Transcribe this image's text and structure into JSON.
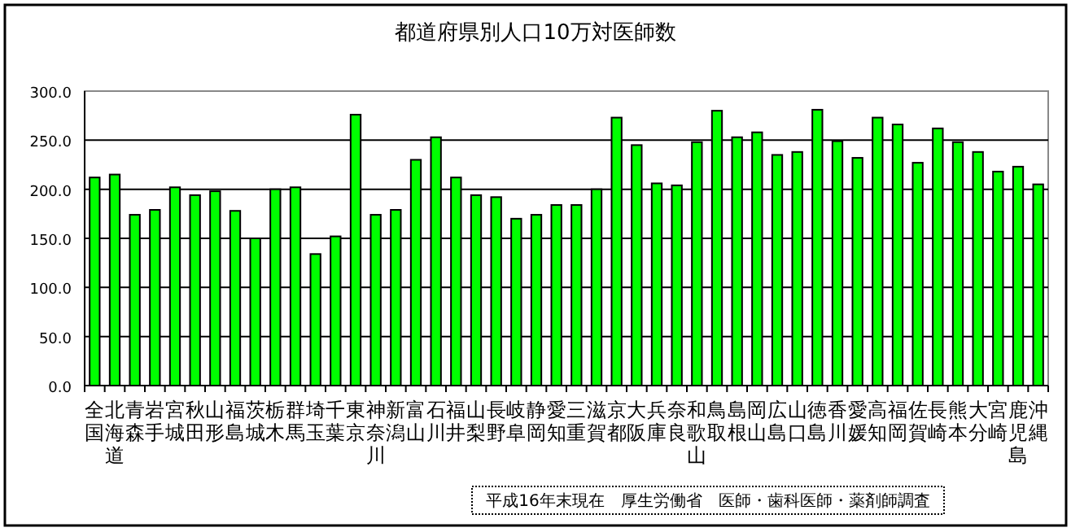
{
  "chart_data": {
    "type": "bar",
    "title": "都道府県別人口10万対医師数",
    "categories": [
      "全国",
      "北海道",
      "青森",
      "岩手",
      "宮城",
      "秋田",
      "山形",
      "福島",
      "茨城",
      "栃木",
      "群馬",
      "埼玉",
      "千葉",
      "東京",
      "神奈川",
      "新潟",
      "富山",
      "石川",
      "福井",
      "山梨",
      "長野",
      "岐阜",
      "静岡",
      "愛知",
      "三重",
      "滋賀",
      "京都",
      "大阪",
      "兵庫",
      "奈良",
      "和歌山",
      "鳥取",
      "島根",
      "岡山",
      "広島",
      "山口",
      "徳島",
      "香川",
      "愛媛",
      "高知",
      "福岡",
      "佐賀",
      "長崎",
      "熊本",
      "大分",
      "宮崎",
      "鹿児島",
      "沖縄"
    ],
    "values": [
      212,
      215,
      174,
      179,
      202,
      194,
      198,
      178,
      150,
      200,
      202,
      134,
      152,
      276,
      174,
      179,
      230,
      253,
      212,
      194,
      192,
      170,
      174,
      184,
      184,
      200,
      273,
      245,
      206,
      204,
      248,
      280,
      253,
      258,
      235,
      238,
      281,
      249,
      232,
      273,
      266,
      227,
      262,
      248,
      238,
      218,
      223,
      205
    ],
    "color": "#00ff00",
    "ylim": [
      0,
      300
    ],
    "yticks": [
      {
        "value": 0,
        "label": "0.0"
      },
      {
        "value": 50,
        "label": "50.0"
      },
      {
        "value": 100,
        "label": "100.0"
      },
      {
        "value": 150,
        "label": "150.0"
      },
      {
        "value": 200,
        "label": "200.0"
      },
      {
        "value": 250,
        "label": "250.0"
      },
      {
        "value": 300,
        "label": "300.0"
      }
    ],
    "grid": "y",
    "annotations": [
      "平成16年末現在　厚生労働省　医師・歯科医師・薬剤師調査"
    ]
  }
}
